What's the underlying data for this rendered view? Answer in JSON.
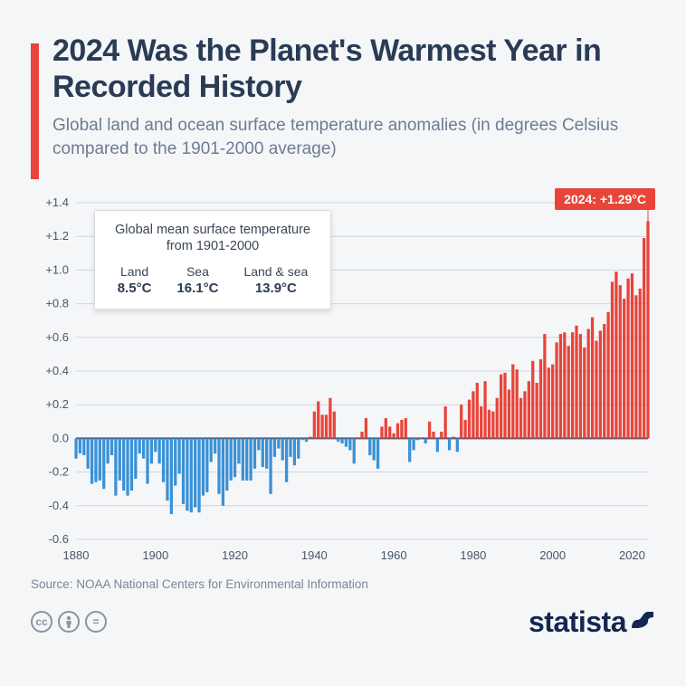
{
  "title": "2024 Was the Planet's Warmest Year in Recorded History",
  "subtitle": "Global land and ocean surface temperature anomalies (in degrees Celsius compared to the 1901-2000 average)",
  "accent_color": "#e8443a",
  "badge": {
    "label": "2024: +1.29°C",
    "bg": "#e8443a",
    "fg": "#ffffff"
  },
  "info_box": {
    "title_l1": "Global mean surface temperature",
    "title_l2": "from 1901-2000",
    "cols": [
      {
        "label": "Land",
        "value": "8.5°C"
      },
      {
        "label": "Sea",
        "value": "16.1°C"
      },
      {
        "label": "Land & sea",
        "value": "13.9°C"
      }
    ]
  },
  "chart": {
    "type": "bar",
    "x_start": 1880,
    "x_end": 2024,
    "x_ticks": [
      1880,
      1900,
      1920,
      1940,
      1960,
      1980,
      2000,
      2020
    ],
    "y_min": -0.6,
    "y_max": 1.4,
    "y_step": 0.2,
    "zero_line_width": 2,
    "grid_color": "#cfd4dc",
    "axis_color": "#4a5568",
    "tick_font_size": 13,
    "pos_color": "#e8443a",
    "neg_color": "#3a91d6",
    "bg": "#f5f6f8",
    "bar_gap": 0.25,
    "values": [
      -0.12,
      -0.09,
      -0.1,
      -0.18,
      -0.27,
      -0.26,
      -0.25,
      -0.3,
      -0.15,
      -0.1,
      -0.34,
      -0.25,
      -0.31,
      -0.34,
      -0.31,
      -0.24,
      -0.09,
      -0.12,
      -0.27,
      -0.15,
      -0.08,
      -0.15,
      -0.26,
      -0.37,
      -0.45,
      -0.28,
      -0.21,
      -0.39,
      -0.43,
      -0.44,
      -0.41,
      -0.44,
      -0.34,
      -0.32,
      -0.14,
      -0.09,
      -0.33,
      -0.4,
      -0.31,
      -0.25,
      -0.23,
      -0.15,
      -0.25,
      -0.25,
      -0.25,
      -0.18,
      -0.07,
      -0.17,
      -0.18,
      -0.33,
      -0.11,
      -0.06,
      -0.13,
      -0.26,
      -0.11,
      -0.16,
      -0.12,
      -0.01,
      -0.02,
      0.01,
      0.16,
      0.22,
      0.14,
      0.14,
      0.24,
      0.16,
      -0.02,
      -0.03,
      -0.05,
      -0.07,
      -0.15,
      0.0,
      0.04,
      0.12,
      -0.1,
      -0.13,
      -0.18,
      0.07,
      0.12,
      0.07,
      0.03,
      0.09,
      0.11,
      0.12,
      -0.14,
      -0.07,
      -0.01,
      0.0,
      -0.03,
      0.1,
      0.04,
      -0.08,
      0.04,
      0.19,
      -0.07,
      0.01,
      -0.08,
      0.2,
      0.11,
      0.23,
      0.28,
      0.33,
      0.19,
      0.34,
      0.17,
      0.16,
      0.24,
      0.38,
      0.39,
      0.29,
      0.44,
      0.41,
      0.24,
      0.28,
      0.34,
      0.46,
      0.33,
      0.47,
      0.62,
      0.42,
      0.44,
      0.57,
      0.62,
      0.63,
      0.55,
      0.63,
      0.67,
      0.62,
      0.54,
      0.65,
      0.72,
      0.58,
      0.64,
      0.68,
      0.75,
      0.93,
      0.99,
      0.91,
      0.83,
      0.95,
      0.98,
      0.85,
      0.89,
      1.19,
      1.29
    ]
  },
  "source": "Source: NOAA National Centers for Environmental Information",
  "brand": "statista",
  "cc": [
    "cc",
    "by",
    "="
  ]
}
